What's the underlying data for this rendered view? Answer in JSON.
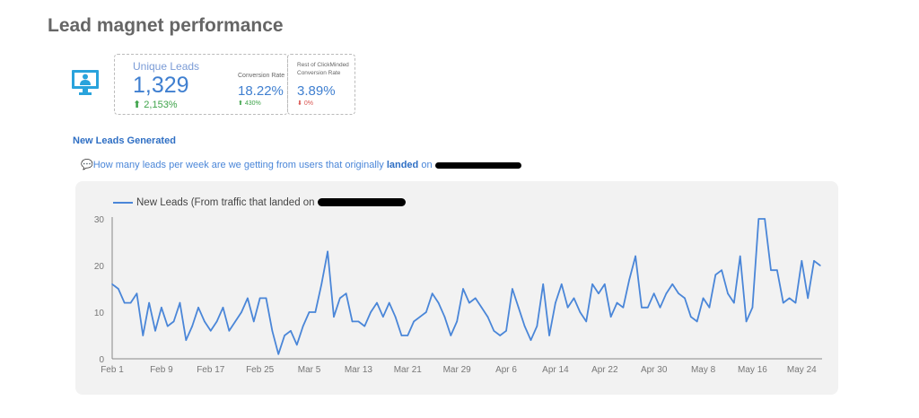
{
  "title": "Lead magnet performance",
  "kpi": {
    "unique_leads_label": "Unique Leads",
    "unique_leads_value": "1,329",
    "unique_leads_change": "2,153%",
    "conversion_label": "Conversion Rate",
    "conversion_value": "18.22%",
    "conversion_change": "430%",
    "rest_label": "Rest of ClickMinded Conversion Rate",
    "rest_value": "3.89%",
    "rest_change": "0%"
  },
  "section_title": "New Leads Generated",
  "question": {
    "pre": "How many leads per week are we getting from users that originally ",
    "bold": "landed",
    "post": " on"
  },
  "colors": {
    "accent": "#4a86d8",
    "up": "#3ea34a",
    "down": "#d9534f"
  },
  "chart_data": {
    "type": "line",
    "legend": "New Leads (From traffic that landed on",
    "legend_placement": "top-left",
    "ylim": [
      0,
      30
    ],
    "yticks": [
      0,
      10,
      20,
      30
    ],
    "xtick_labels": [
      "Feb 1",
      "Feb 9",
      "Feb 17",
      "Feb 25",
      "Mar 5",
      "Mar 13",
      "Mar 21",
      "Mar 29",
      "Apr 6",
      "Apr 14",
      "Apr 22",
      "Apr 30",
      "May 8",
      "May 16",
      "May 24"
    ],
    "xtick_day_index": [
      0,
      8,
      16,
      24,
      32,
      40,
      48,
      56,
      64,
      72,
      80,
      88,
      96,
      104,
      112
    ],
    "series": [
      {
        "name": "New Leads",
        "values": [
          16,
          15,
          12,
          12,
          14,
          5,
          12,
          6,
          11,
          7,
          8,
          12,
          4,
          7,
          11,
          8,
          6,
          8,
          11,
          6,
          8,
          10,
          13,
          8,
          13,
          13,
          6,
          1,
          5,
          6,
          3,
          7,
          10,
          10,
          16,
          23,
          9,
          13,
          14,
          8,
          8,
          7,
          10,
          12,
          9,
          12,
          9,
          5,
          5,
          8,
          9,
          10,
          14,
          12,
          9,
          5,
          8,
          15,
          12,
          13,
          11,
          9,
          6,
          5,
          6,
          15,
          11,
          7,
          4,
          7,
          16,
          5,
          12,
          16,
          11,
          13,
          10,
          8,
          16,
          14,
          16,
          9,
          12,
          11,
          17,
          22,
          11,
          11,
          14,
          11,
          14,
          16,
          14,
          13,
          9,
          8,
          13,
          11,
          18,
          19,
          14,
          12,
          22,
          8,
          11,
          30,
          30,
          19,
          19,
          12,
          13,
          12,
          21,
          13,
          21,
          20
        ]
      }
    ]
  }
}
